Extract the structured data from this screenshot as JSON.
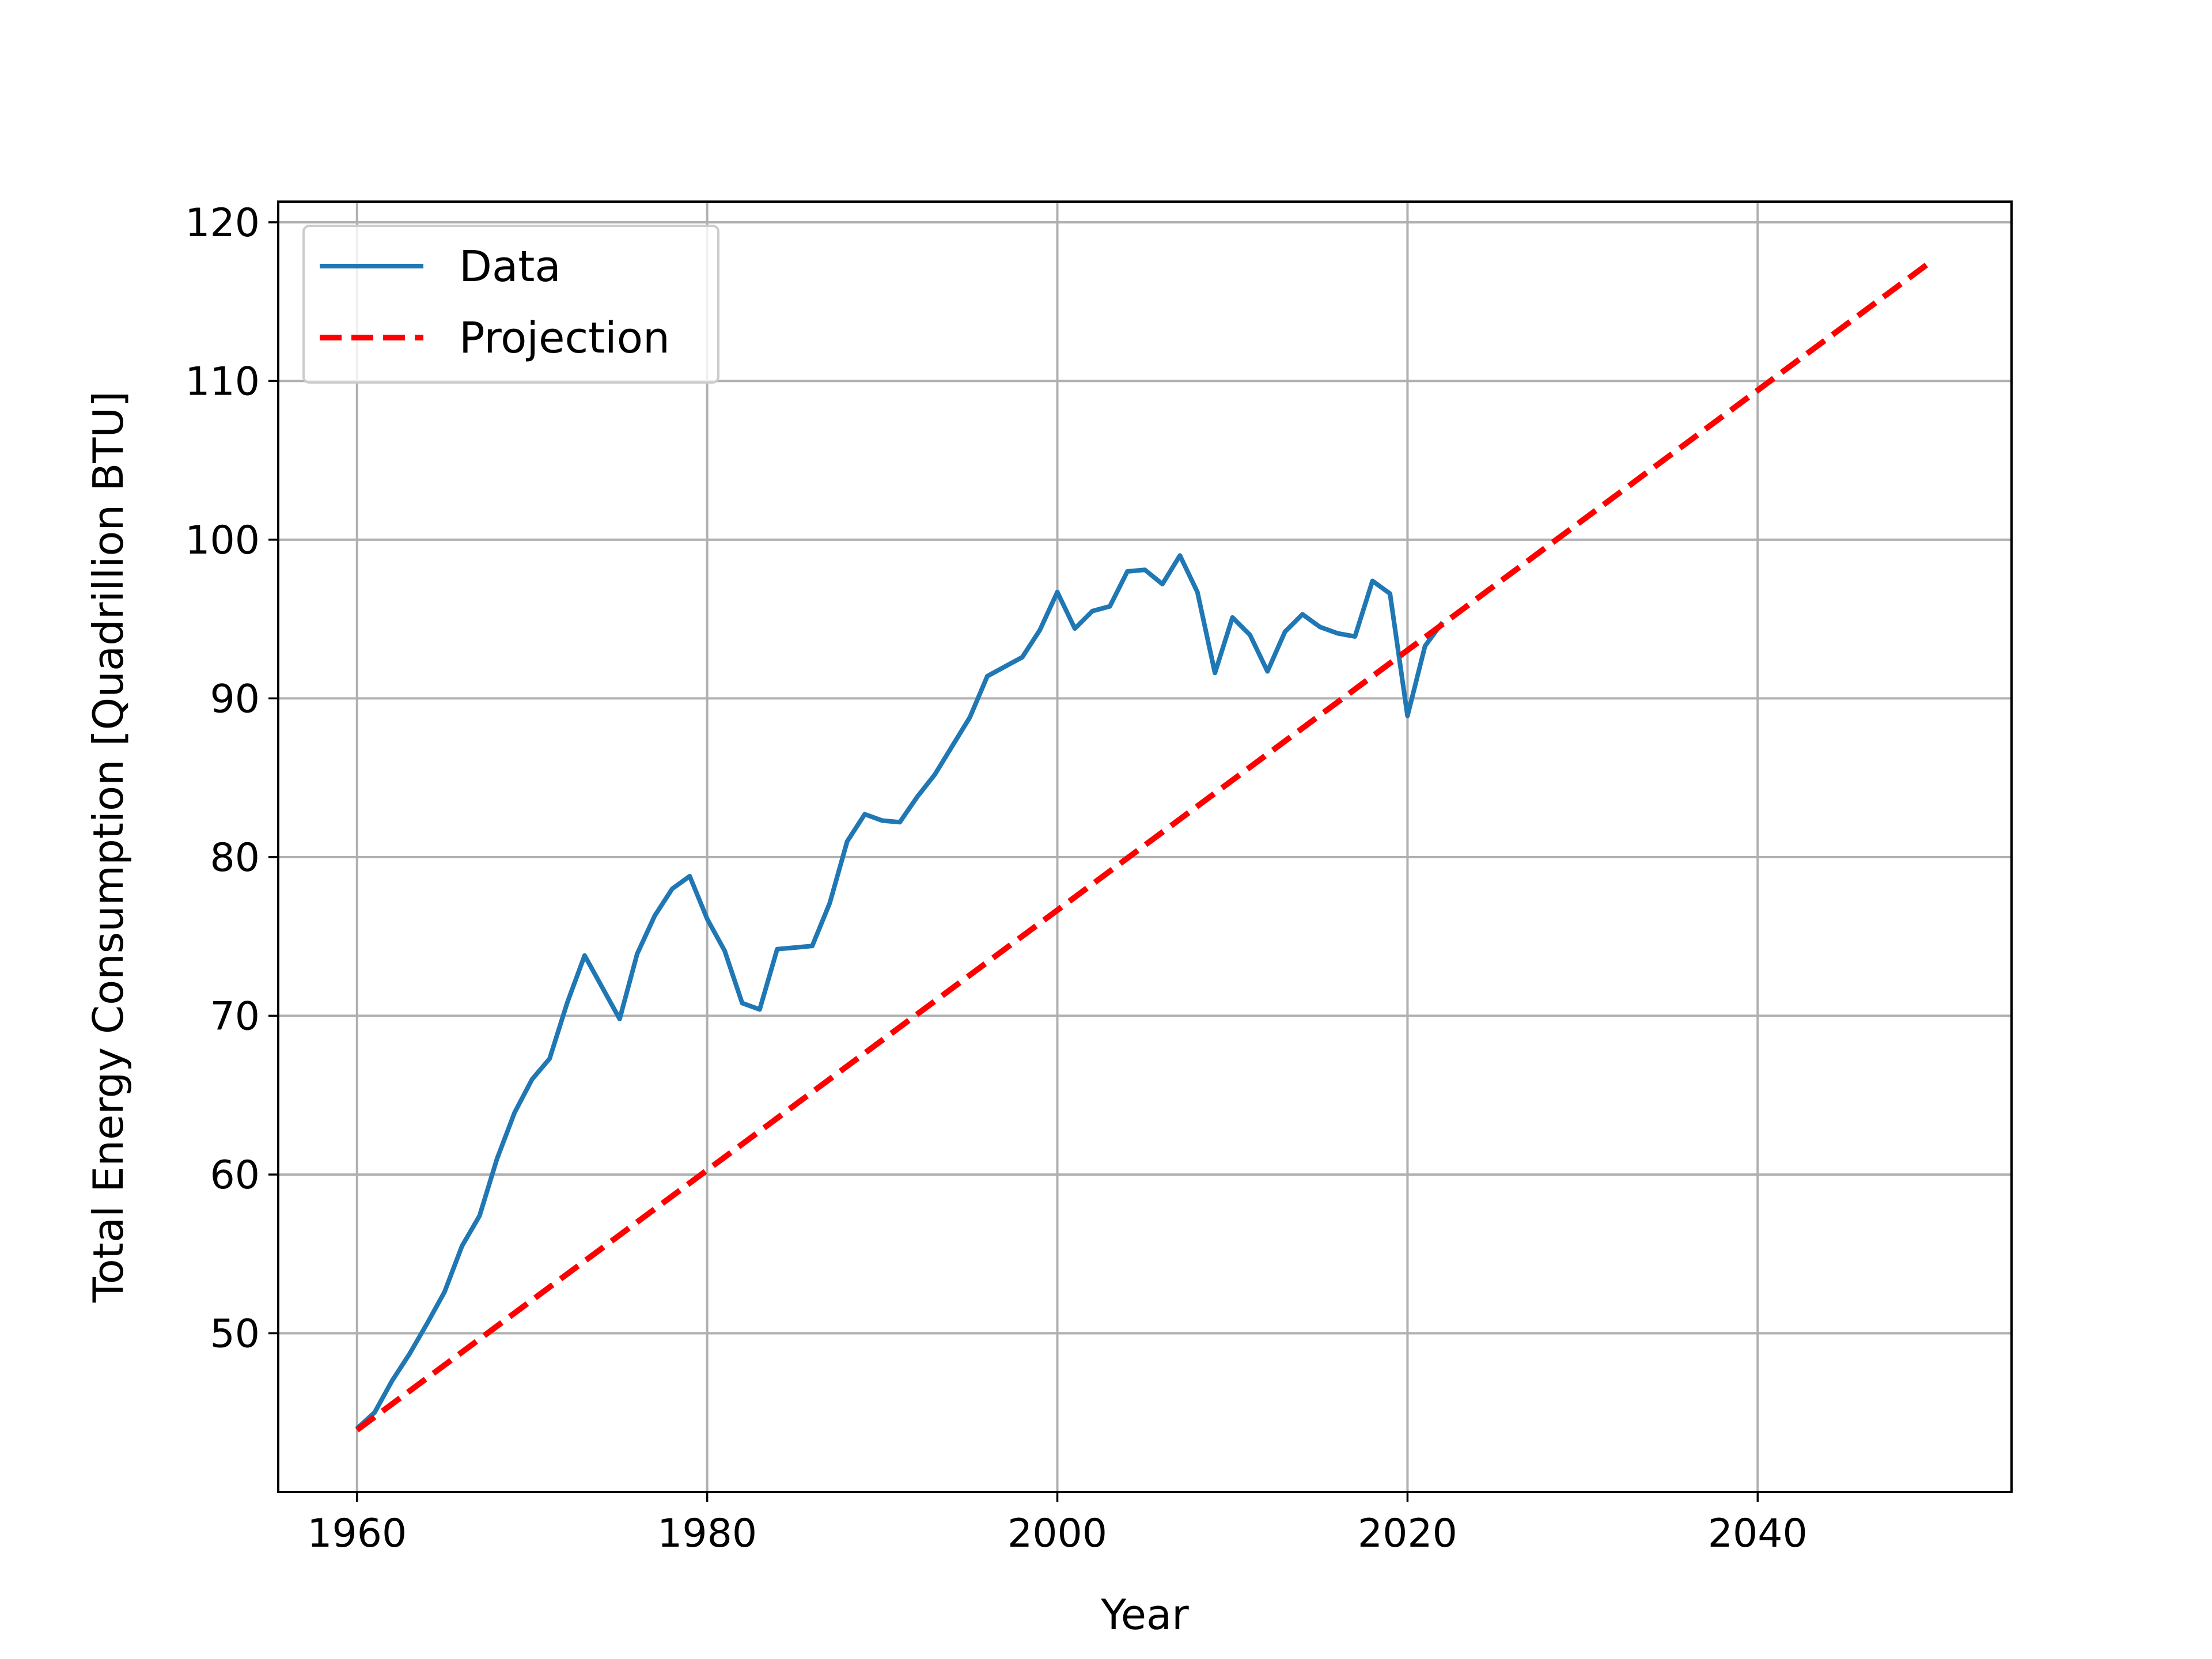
{
  "chart_data": {
    "type": "line",
    "title": "",
    "xlabel": "Year",
    "ylabel": "Total Energy Consumption [Quadrillion BTU]",
    "xlim": [
      1955.5,
      2054.5
    ],
    "ylim": [
      40,
      121.3
    ],
    "xticks": [
      1960,
      1980,
      2000,
      2020,
      2040
    ],
    "yticks": [
      50,
      60,
      70,
      80,
      90,
      100,
      110,
      120
    ],
    "grid": true,
    "legend": {
      "position": "upper-left"
    },
    "series": [
      {
        "name": "Data",
        "style": "solid",
        "color": "#1f77b4",
        "x": [
          1960,
          1961,
          1962,
          1963,
          1964,
          1965,
          1966,
          1967,
          1968,
          1969,
          1970,
          1971,
          1972,
          1973,
          1974,
          1975,
          1976,
          1977,
          1978,
          1979,
          1980,
          1981,
          1982,
          1983,
          1984,
          1985,
          1986,
          1987,
          1988,
          1989,
          1990,
          1991,
          1992,
          1993,
          1994,
          1995,
          1996,
          1997,
          1998,
          1999,
          2000,
          2001,
          2002,
          2003,
          2004,
          2005,
          2006,
          2007,
          2008,
          2009,
          2010,
          2011,
          2012,
          2013,
          2014,
          2015,
          2016,
          2017,
          2018,
          2019,
          2020,
          2021,
          2022
        ],
        "y": [
          44.0,
          45.0,
          47.0,
          48.7,
          50.6,
          52.6,
          55.5,
          57.4,
          61.0,
          63.9,
          66.0,
          67.3,
          70.8,
          73.8,
          71.8,
          69.8,
          73.9,
          76.3,
          78.0,
          78.8,
          76.1,
          74.1,
          70.8,
          70.4,
          74.2,
          74.3,
          74.4,
          77.1,
          81.0,
          82.7,
          82.3,
          82.2,
          83.8,
          85.2,
          87.0,
          88.8,
          91.4,
          92.0,
          92.6,
          94.3,
          96.7,
          94.4,
          95.5,
          95.8,
          98.0,
          98.1,
          97.2,
          99.0,
          96.7,
          91.6,
          95.1,
          94.0,
          91.7,
          94.2,
          95.3,
          94.5,
          94.1,
          93.9,
          97.4,
          96.6,
          88.9,
          93.3,
          94.8
        ]
      },
      {
        "name": "Projection",
        "style": "dashed",
        "color": "#ff0000",
        "x": [
          1960,
          2050
        ],
        "y": [
          43.9,
          117.6
        ]
      }
    ]
  }
}
